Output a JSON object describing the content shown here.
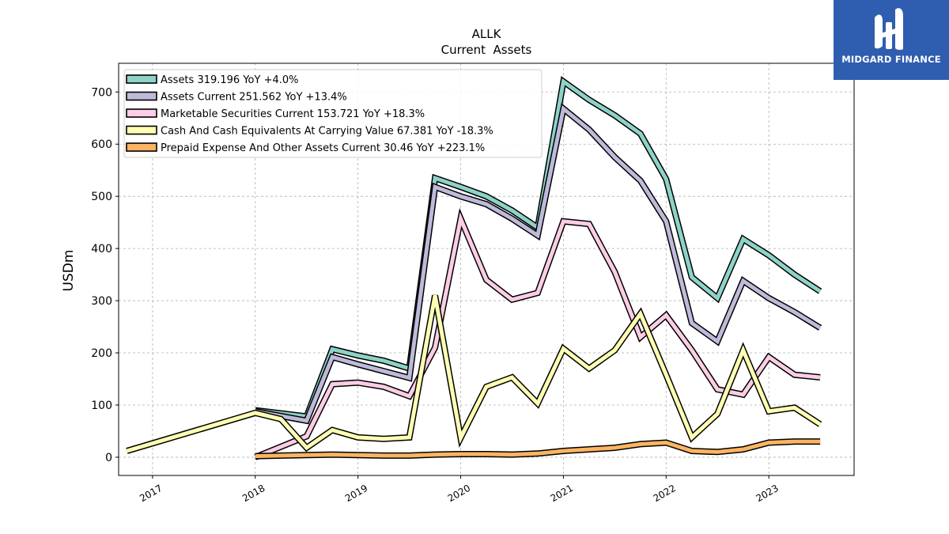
{
  "chart_data": {
    "type": "line",
    "title": "ALLK",
    "subtitle": "Current  Assets",
    "ylabel": "USDm",
    "xlabel": "",
    "ylim": [
      -35,
      755
    ],
    "xlim": [
      2016.67,
      2023.83
    ],
    "yticks": [
      0,
      100,
      200,
      300,
      400,
      500,
      600,
      700
    ],
    "xticks": [
      "2017",
      "2018",
      "2019",
      "2020",
      "2021",
      "2022",
      "2023"
    ],
    "grid": true,
    "legend_position": "top-left",
    "series": [
      {
        "name": "Assets  319.196 YoY +4.0%",
        "color": "#8dd3c7",
        "x": [
          "2018-01-01",
          "2018-07-01",
          "2018-10-01",
          "2019-01-01",
          "2019-04-01",
          "2019-07-01",
          "2019-10-01",
          "2020-01-01",
          "2020-04-01",
          "2020-07-01",
          "2020-10-01",
          "2021-01-01",
          "2021-04-01",
          "2021-07-01",
          "2021-10-01",
          "2022-01-01",
          "2022-04-01",
          "2022-07-01",
          "2022-10-01",
          "2023-01-01",
          "2023-04-01",
          "2023-07-01"
        ],
        "y": [
          90,
          78,
          207,
          195,
          185,
          170,
          535,
          518,
          500,
          473,
          440,
          720,
          685,
          655,
          620,
          533,
          345,
          305,
          418,
          387,
          350,
          318
        ]
      },
      {
        "name": "Assets Current  251.562 YoY +13.4%",
        "color": "#bebada",
        "x": [
          "2018-01-01",
          "2018-07-01",
          "2018-10-01",
          "2019-01-01",
          "2019-04-01",
          "2019-07-01",
          "2019-10-01",
          "2020-01-01",
          "2020-04-01",
          "2020-07-01",
          "2020-10-01",
          "2021-01-01",
          "2021-04-01",
          "2021-07-01",
          "2021-10-01",
          "2022-01-01",
          "2022-04-01",
          "2022-07-01",
          "2022-10-01",
          "2023-01-01",
          "2023-04-01",
          "2023-07-01"
        ],
        "y": [
          88,
          70,
          192,
          178,
          165,
          152,
          518,
          500,
          485,
          457,
          425,
          668,
          628,
          575,
          530,
          452,
          257,
          222,
          338,
          305,
          278,
          248
        ]
      },
      {
        "name": "Marketable Securities Current  153.721 YoY +18.3%",
        "color": "#fccde5",
        "x": [
          "2018-01-01",
          "2018-07-01",
          "2018-10-01",
          "2019-01-01",
          "2019-04-01",
          "2019-07-01",
          "2019-10-01",
          "2020-01-01",
          "2020-04-01",
          "2020-07-01",
          "2020-10-01",
          "2021-01-01",
          "2021-04-01",
          "2021-07-01",
          "2021-10-01",
          "2022-01-01",
          "2022-04-01",
          "2022-07-01",
          "2022-10-01",
          "2023-01-01",
          "2023-04-01",
          "2023-07-01"
        ],
        "y": [
          0,
          40,
          140,
          143,
          135,
          117,
          210,
          457,
          340,
          302,
          315,
          452,
          447,
          355,
          230,
          272,
          205,
          130,
          120,
          192,
          158,
          153
        ]
      },
      {
        "name": "Cash And Cash Equivalents At Carrying Value  67.381 YoY -18.3%",
        "color": "#ffffb3",
        "x": [
          "2016-10-01",
          "2018-01-01",
          "2018-04-01",
          "2018-07-01",
          "2018-10-01",
          "2019-01-01",
          "2019-04-01",
          "2019-07-01",
          "2019-10-01",
          "2020-01-01",
          "2020-04-01",
          "2020-07-01",
          "2020-10-01",
          "2021-01-01",
          "2021-04-01",
          "2021-07-01",
          "2021-10-01",
          "2022-01-01",
          "2022-04-01",
          "2022-07-01",
          "2022-10-01",
          "2023-01-01",
          "2023-04-01",
          "2023-07-01"
        ],
        "y": [
          12,
          85,
          73,
          18,
          52,
          38,
          35,
          38,
          310,
          37,
          135,
          153,
          103,
          208,
          170,
          205,
          275,
          158,
          38,
          83,
          205,
          88,
          95,
          63
        ]
      },
      {
        "name": "Prepaid Expense And Other Assets Current  30.46 YoY +223.1%",
        "color": "#fdb462",
        "x": [
          "2018-01-01",
          "2018-04-01",
          "2018-07-01",
          "2018-10-01",
          "2019-01-01",
          "2019-04-01",
          "2019-07-01",
          "2019-10-01",
          "2020-01-01",
          "2020-04-01",
          "2020-07-01",
          "2020-10-01",
          "2021-01-01",
          "2021-04-01",
          "2021-07-01",
          "2021-10-01",
          "2022-01-01",
          "2022-04-01",
          "2022-07-01",
          "2022-10-01",
          "2023-01-01",
          "2023-04-01",
          "2023-07-01"
        ],
        "y": [
          2,
          3,
          4,
          5,
          4,
          3,
          3,
          5,
          6,
          6,
          5,
          7,
          12,
          15,
          18,
          25,
          28,
          12,
          10,
          15,
          28,
          30,
          30
        ]
      }
    ]
  },
  "logo": {
    "text": "MIDGARD FINANCE"
  }
}
